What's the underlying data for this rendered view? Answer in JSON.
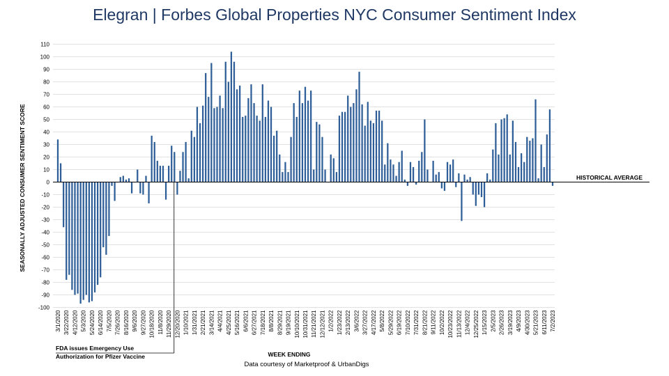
{
  "title": {
    "brand": "Elegran | Forbes Global Properties",
    "rest": " NYC Consumer Sentiment Index"
  },
  "colors": {
    "bar": "#2e5e97",
    "title": "#1f3864",
    "grid": "#d9d9d9"
  },
  "annotations": {
    "historical_average": "HISTORICAL AVERAGE",
    "fda_line1": "FDA issues Emergency Use",
    "fda_line2": "Authorization for Pfizer Vaccine",
    "credit": "Data courtesy of Marketproof & UrbanDigs"
  },
  "chart_data": {
    "type": "bar",
    "ylabel": "SEASONALLY ADJUSTED CONSUMER SENTIMENT SCORE",
    "xlabel": "WEEK ENDING",
    "ylim": [
      -100,
      110
    ],
    "yticks": [
      110,
      100,
      90,
      80,
      70,
      60,
      50,
      40,
      30,
      20,
      10,
      0,
      -10,
      -20,
      -30,
      -40,
      -50,
      -60,
      -70,
      -80,
      -90,
      -100
    ],
    "grid": true,
    "xtick_labels": [
      "3/1/2020",
      "3/22/2020",
      "4/12/2020",
      "5/3/2020",
      "5/24/2020",
      "6/14/2020",
      "7/5/2020",
      "7/26/2020",
      "8/16/2020",
      "9/6/2020",
      "9/27/2020",
      "10/18/2020",
      "11/8/2020",
      "11/29/2020",
      "12/20/2020",
      "1/10/2021",
      "1/31/2021",
      "2/21/2021",
      "3/14/2021",
      "4/4/2021",
      "4/25/2021",
      "5/16/2021",
      "6/6/2021",
      "6/27/2021",
      "7/18/2021",
      "8/8/2021",
      "8/29/2021",
      "9/19/2021",
      "10/10/2021",
      "10/31/2021",
      "11/21/2021",
      "12/12/2021",
      "1/2/2022",
      "1/23/2022",
      "2/13/2022",
      "3/6/2022",
      "3/27/2022",
      "4/17/2022",
      "5/8/2022",
      "5/29/2022",
      "6/19/2022",
      "7/10/2022",
      "7/31/2022",
      "8/21/2022",
      "9/11/2022",
      "10/2/2022",
      "10/23/2022",
      "11/13/2022",
      "12/4/2022",
      "12/25/2022",
      "1/15/2023",
      "2/5/2023",
      "2/26/2023",
      "3/19/2023",
      "4/9/2023",
      "4/30/2023",
      "5/21/2023",
      "6/11/2023",
      "7/2/2023"
    ],
    "fda_week_index": 41,
    "values": [
      34,
      15,
      -36,
      -78,
      -74,
      -86,
      -90,
      -89,
      -97,
      -94,
      -90,
      -96,
      -95,
      -88,
      -82,
      -76,
      -52,
      -58,
      -43,
      -3,
      -15,
      0,
      4,
      5,
      2,
      3,
      -9,
      0,
      10,
      -9,
      -10,
      5,
      -17,
      37,
      32,
      17,
      13,
      13,
      -14,
      13,
      29,
      24,
      -10,
      9,
      24,
      32,
      3,
      41,
      36,
      60,
      47,
      61,
      87,
      68,
      95,
      59,
      60,
      69,
      59,
      96,
      80,
      104,
      96,
      74,
      77,
      52,
      53,
      67,
      78,
      63,
      53,
      49,
      78,
      52,
      65,
      60,
      37,
      41,
      22,
      8,
      16,
      8,
      36,
      63,
      52,
      73,
      63,
      76,
      65,
      73,
      10,
      48,
      46,
      36,
      10,
      0,
      22,
      19,
      8,
      53,
      56,
      56,
      69,
      60,
      63,
      74,
      88,
      62,
      45,
      64,
      49,
      47,
      57,
      57,
      49,
      14,
      31,
      18,
      14,
      5,
      16,
      25,
      2,
      -3,
      16,
      12,
      -2,
      17,
      24,
      50,
      10,
      0,
      17,
      6,
      8,
      -5,
      -7,
      16,
      14,
      18,
      -4,
      7,
      -31,
      6,
      2,
      4,
      -10,
      -19,
      -10,
      -12,
      -20,
      7,
      2,
      26,
      47,
      22,
      50,
      51,
      54,
      22,
      49,
      32,
      12,
      23,
      16,
      36,
      33,
      35,
      66,
      3,
      30,
      12,
      38,
      58,
      -3
    ]
  }
}
